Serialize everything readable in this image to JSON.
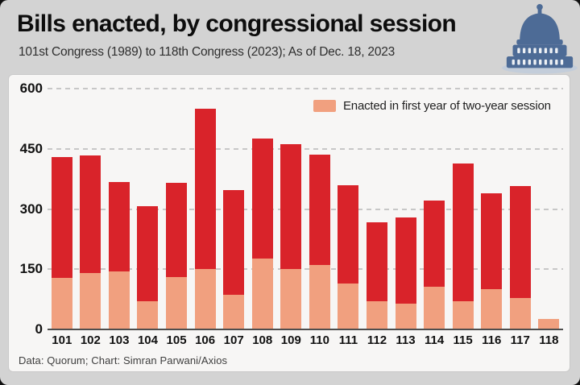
{
  "header": {
    "title": "Bills enacted, by congressional session",
    "subtitle": "101st Congress (1989) to 118th Congress (2023); As of Dec. 18, 2023"
  },
  "icons": {
    "capitol": "capitol-dome-icon"
  },
  "colors": {
    "bar_red": "#d9232a",
    "bar_salmon": "#f1a07f",
    "page_bg": "#d3d3d3",
    "panel_bg": "#f7f6f5",
    "capitol_blue": "#4d6b96",
    "grid": "#c7c7c7",
    "axis_line": "#4e4e4e"
  },
  "chart_data": {
    "type": "bar",
    "title": "Bills enacted, by congressional session",
    "subtitle": "101st Congress (1989) to 118th Congress (2023); As of Dec. 18, 2023",
    "categories": [
      "101",
      "102",
      "103",
      "104",
      "105",
      "106",
      "107",
      "108",
      "109",
      "110",
      "111",
      "112",
      "113",
      "114",
      "115",
      "116",
      "117",
      "118"
    ],
    "series": [
      {
        "id": "total_two_year_session",
        "color": "#d9232a",
        "values": [
          430,
          433,
          367,
          307,
          365,
          550,
          347,
          476,
          462,
          436,
          360,
          267,
          279,
          322,
          413,
          340,
          357,
          27
        ]
      },
      {
        "id": "first_year",
        "label": "Enacted in first year of two-year session",
        "color": "#f1a07f",
        "values": [
          128,
          140,
          145,
          70,
          131,
          151,
          87,
          177,
          150,
          161,
          115,
          71,
          65,
          106,
          70,
          100,
          78,
          27
        ]
      }
    ],
    "xlabel": "",
    "ylabel": "",
    "ylim": [
      0,
      600
    ],
    "yticks": [
      0,
      150,
      300,
      450,
      600
    ],
    "grid": "horizontal-dashed",
    "legend": {
      "label": "Enacted in first year of two-year session",
      "position": "top-right"
    }
  },
  "footer": {
    "credit": "Data: Quorum; Chart: Simran Parwani/Axios"
  }
}
